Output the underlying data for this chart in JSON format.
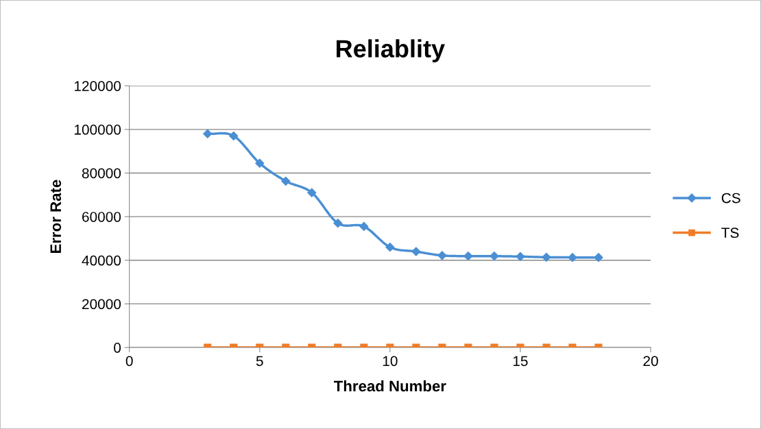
{
  "chart_data": {
    "type": "line",
    "title": "Reliablity",
    "xlabel": "Thread Number",
    "ylabel": "Error Rate",
    "x": [
      3,
      4,
      5,
      6,
      7,
      8,
      9,
      10,
      11,
      12,
      13,
      14,
      15,
      16,
      17,
      18
    ],
    "series": [
      {
        "name": "CS",
        "color": "#4a8fd4",
        "marker": "diamond",
        "values": [
          98000,
          97000,
          84500,
          76300,
          71000,
          57000,
          55500,
          46000,
          44000,
          42200,
          41900,
          41900,
          41700,
          41400,
          41300,
          41300
        ]
      },
      {
        "name": "TS",
        "color": "#f07c28",
        "marker": "square",
        "values": [
          0,
          0,
          0,
          0,
          0,
          0,
          0,
          0,
          0,
          0,
          0,
          0,
          0,
          0,
          0,
          0
        ]
      }
    ],
    "xlim": [
      0,
      20
    ],
    "xticks": [
      0,
      5,
      10,
      15,
      20
    ],
    "ylim": [
      0,
      120000
    ],
    "yticks": [
      0,
      20000,
      40000,
      60000,
      80000,
      100000,
      120000
    ],
    "grid": "y",
    "legend": "right"
  }
}
